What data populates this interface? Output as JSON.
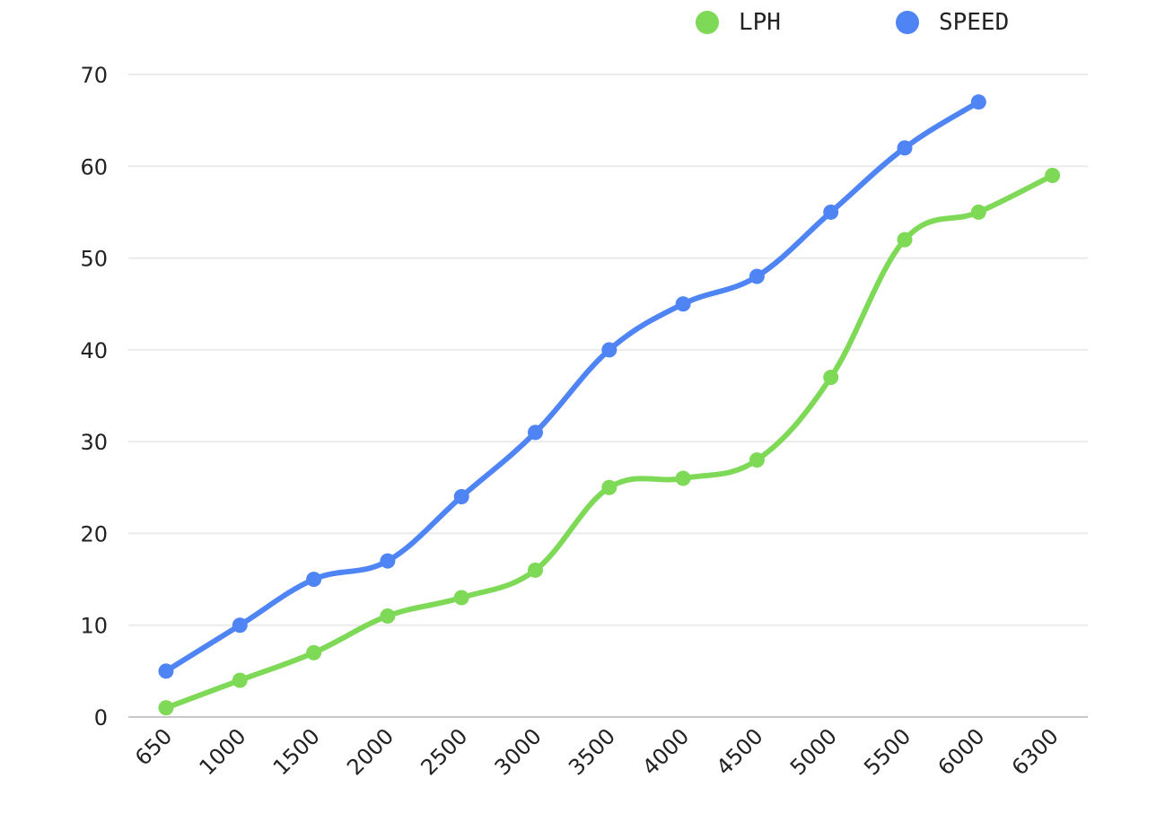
{
  "chart_data": {
    "type": "line",
    "categories": [
      "650",
      "1000",
      "1500",
      "2000",
      "2500",
      "3000",
      "3500",
      "4000",
      "4500",
      "5000",
      "5500",
      "6000",
      "6300"
    ],
    "series": [
      {
        "name": "LPH",
        "color": "#7ed957",
        "values": [
          1,
          4,
          7,
          11,
          13,
          16,
          25,
          26,
          28,
          37,
          52,
          55,
          59
        ]
      },
      {
        "name": "SPEED",
        "color": "#4f84f5",
        "values": [
          5,
          10,
          15,
          17,
          24,
          31,
          40,
          45,
          48,
          55,
          62,
          67,
          null
        ]
      }
    ],
    "title": "",
    "xlabel": "",
    "ylabel": "",
    "ylim": [
      0,
      70
    ],
    "yticks": [
      "0",
      "10",
      "20",
      "30",
      "40",
      "50",
      "60",
      "70"
    ],
    "grid": true,
    "legend_position": "top-right",
    "smooth": true
  }
}
